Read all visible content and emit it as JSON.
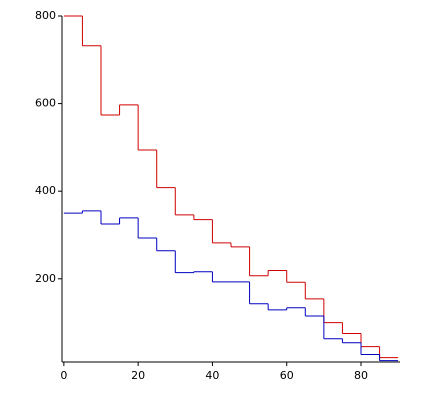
{
  "chart_data": {
    "type": "histogram",
    "bins": [
      0,
      5,
      10,
      15,
      20,
      25,
      30,
      35,
      40,
      45,
      50,
      55,
      60,
      65,
      70,
      75,
      80,
      85,
      90
    ],
    "series": [
      {
        "color": "#d00000",
        "values": [
          800,
          732,
          574,
          597,
          494,
          408,
          346,
          335,
          282,
          273,
          207,
          219,
          192,
          154,
          100,
          75,
          45,
          20
        ]
      },
      {
        "color": "#0000c0",
        "values": [
          350,
          355,
          325,
          339,
          293,
          264,
          214,
          216,
          193,
          193,
          143,
          129,
          134,
          115,
          63,
          54,
          27,
          13
        ]
      }
    ],
    "xlim": [
      -0.5,
      90.5
    ],
    "ylim": [
      10,
      800
    ],
    "xticks": [
      0,
      20,
      40,
      60,
      80
    ],
    "yticks": [
      200,
      400,
      600,
      800
    ]
  }
}
